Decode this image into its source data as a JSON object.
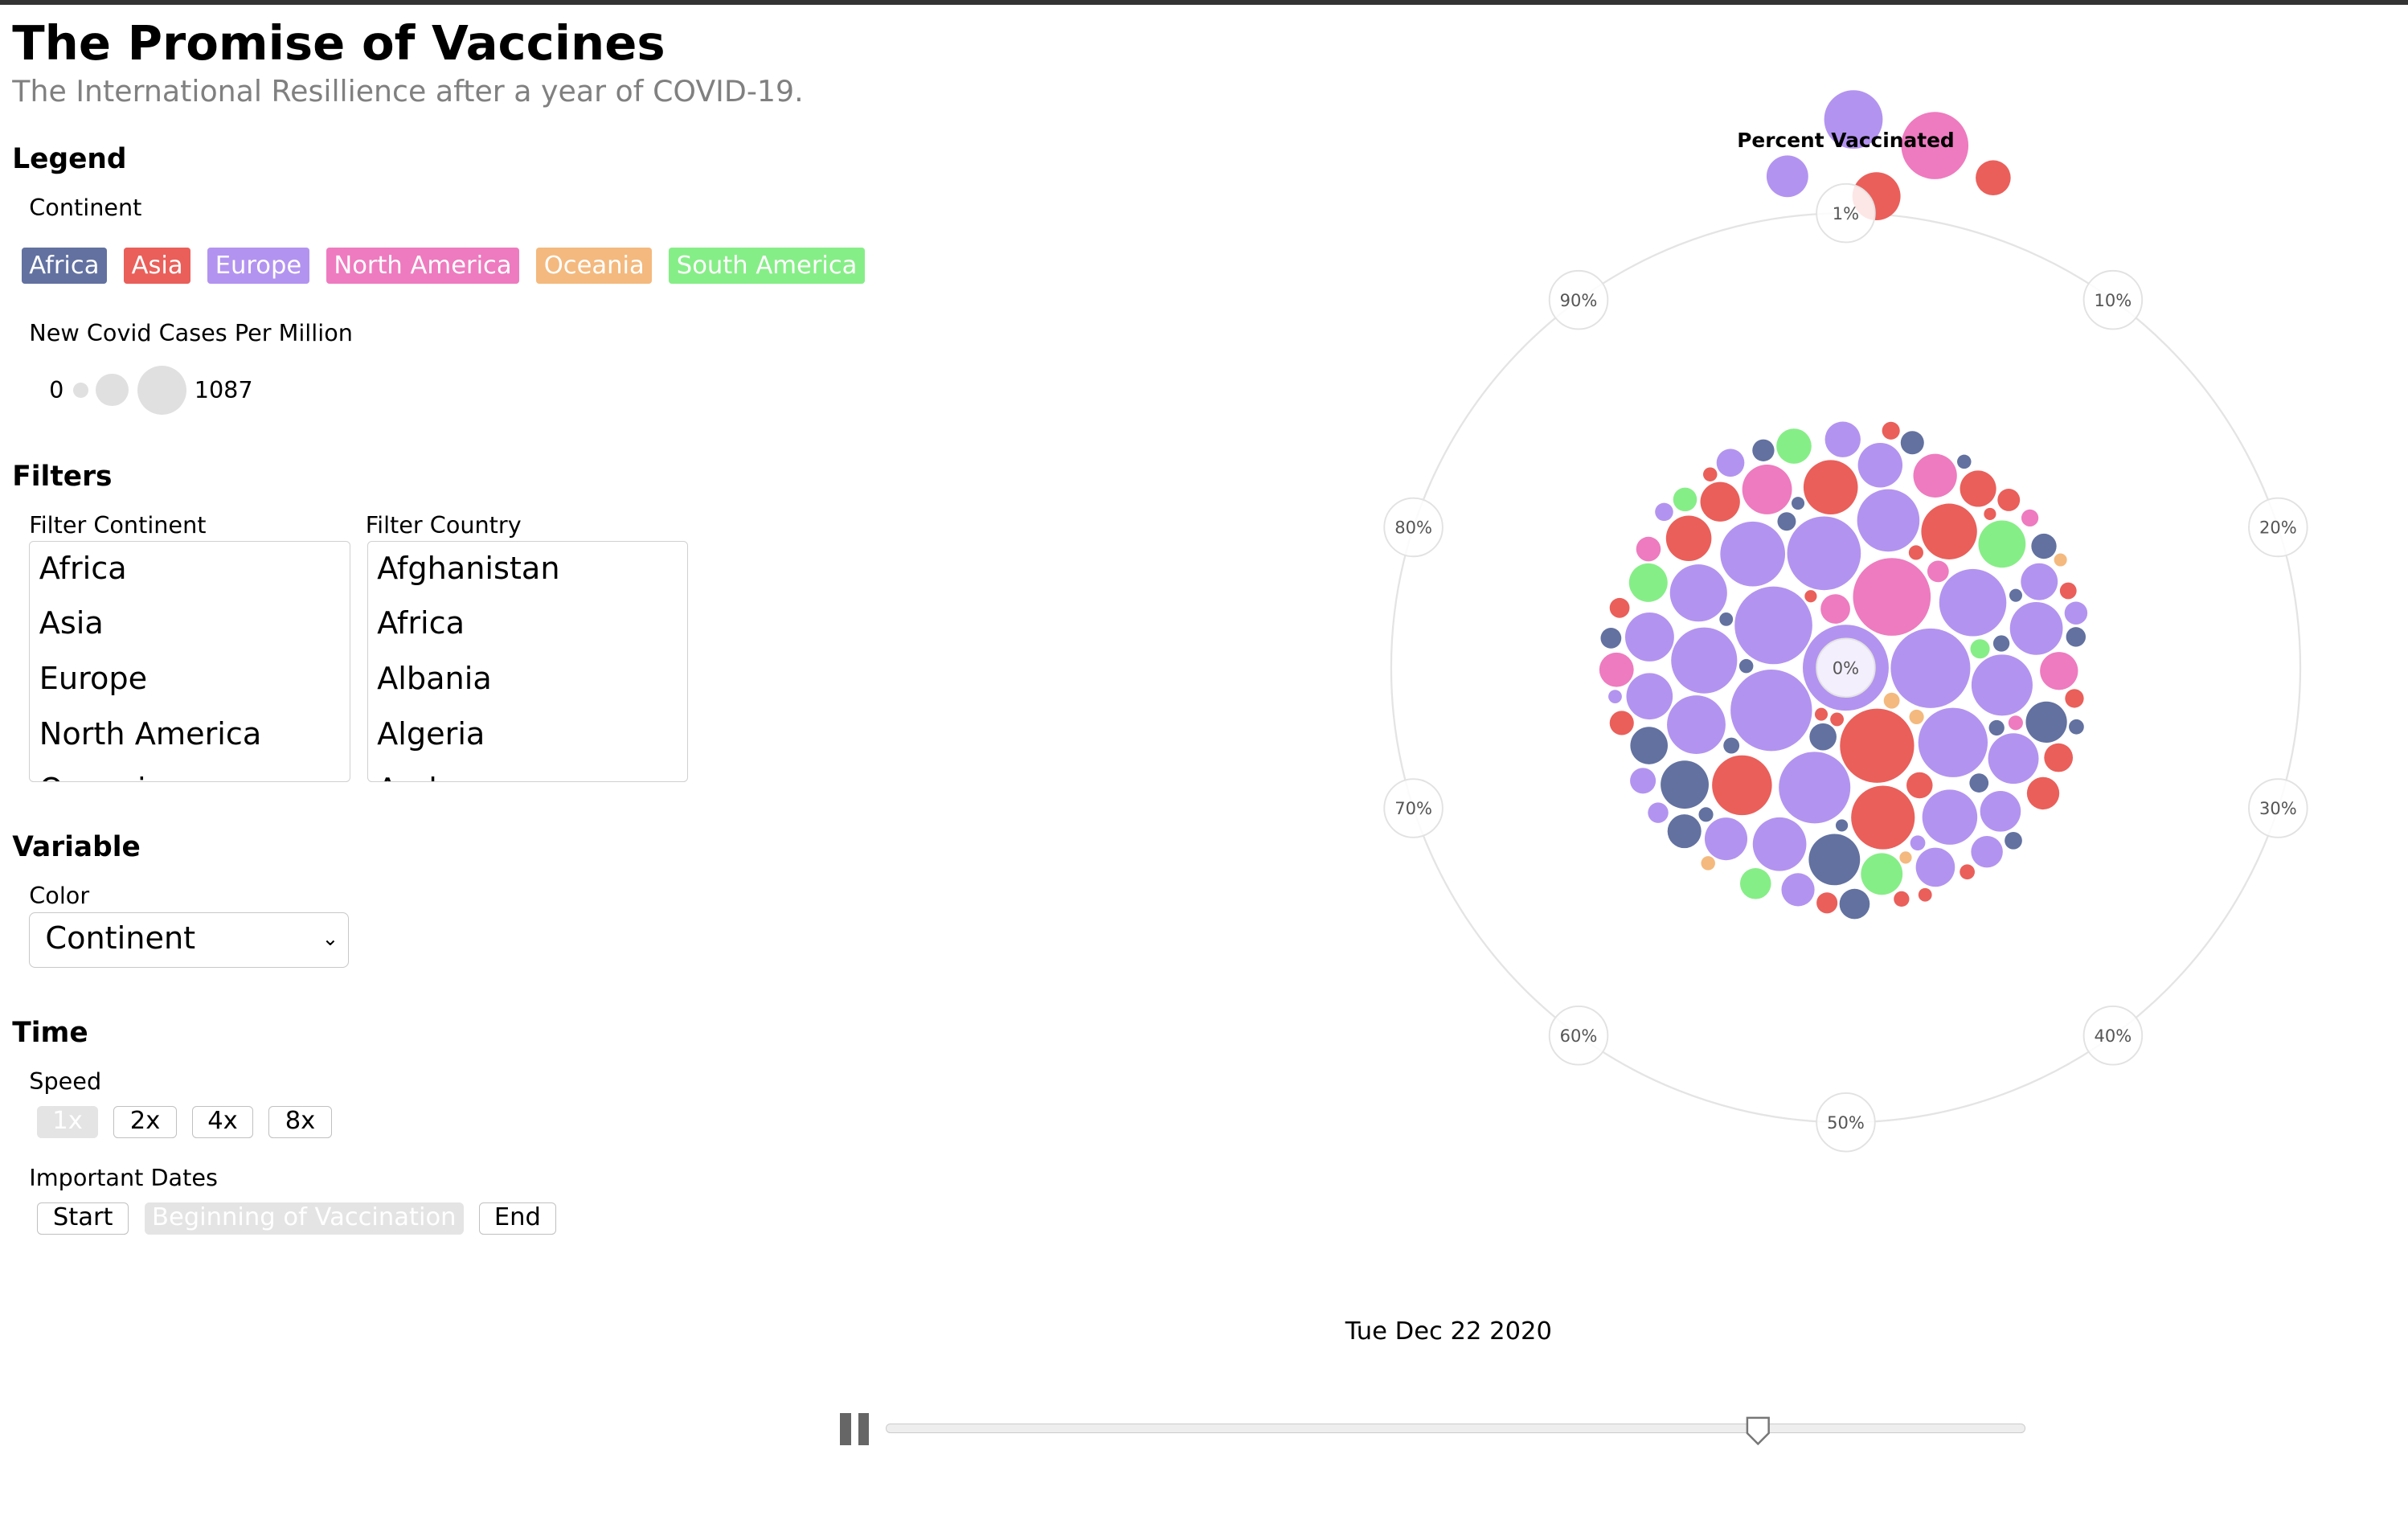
{
  "header": {
    "title": "The Promise of Vaccines",
    "subtitle": "The International Resillience after a year of COVID-19."
  },
  "legend": {
    "heading": "Legend",
    "continent_label": "Continent",
    "continents": [
      {
        "name": "Africa",
        "color": "#6271a0"
      },
      {
        "name": "Asia",
        "color": "#ea5f5a"
      },
      {
        "name": "Europe",
        "color": "#b393f0"
      },
      {
        "name": "North America",
        "color": "#ee7bbf"
      },
      {
        "name": "Oceania",
        "color": "#f4b97e"
      },
      {
        "name": "South America",
        "color": "#86ee87"
      }
    ],
    "size_label": "New Covid Cases Per Million",
    "size_min": "0",
    "size_max": "1087"
  },
  "filters": {
    "heading": "Filters",
    "continent_label": "Filter Continent",
    "continent_options": [
      "Africa",
      "Asia",
      "Europe",
      "North America",
      "Oceania"
    ],
    "country_label": "Filter Country",
    "country_options": [
      "Afghanistan",
      "Africa",
      "Albania",
      "Algeria",
      "Andorra"
    ]
  },
  "variable": {
    "heading": "Variable",
    "color_label": "Color",
    "color_selected": "Continent"
  },
  "time": {
    "heading": "Time",
    "speed_label": "Speed",
    "speeds": [
      "1x",
      "2x",
      "4x",
      "8x"
    ],
    "dates_label": "Important Dates",
    "date_buttons": [
      "Start",
      "Beginning of Vaccination",
      "End"
    ]
  },
  "player": {
    "current_date": "Tue Dec 22 2020",
    "progress": 0.765
  },
  "chart_data": {
    "type": "scatter",
    "title": "Percent Vaccinated",
    "radial_ticks": [
      "0%",
      "1%",
      "10%",
      "20%",
      "30%",
      "40%",
      "50%",
      "60%",
      "70%",
      "80%",
      "90%"
    ],
    "size_legend": {
      "min": 0,
      "max": 1087
    },
    "outlier_bubbles": [
      {
        "continent": "Europe",
        "size": 380
      },
      {
        "continent": "North America",
        "size": 520
      },
      {
        "continent": "Asia",
        "size": 240
      },
      {
        "continent": "Europe",
        "size": 170
      },
      {
        "continent": "Asia",
        "size": 110
      }
    ],
    "cluster_bubbles": [
      {
        "continent": "Europe",
        "size": 900
      },
      {
        "continent": "Europe",
        "size": 800
      },
      {
        "continent": "Europe",
        "size": 760
      },
      {
        "continent": "Europe",
        "size": 720
      },
      {
        "continent": "North America",
        "size": 720
      },
      {
        "continent": "Asia",
        "size": 650
      },
      {
        "continent": "Europe",
        "size": 640
      },
      {
        "continent": "Europe",
        "size": 600
      },
      {
        "continent": "Europe",
        "size": 560
      },
      {
        "continent": "Europe",
        "size": 520
      },
      {
        "continent": "Europe",
        "size": 500
      },
      {
        "continent": "Europe",
        "size": 480
      },
      {
        "continent": "Asia",
        "size": 460
      },
      {
        "continent": "Europe",
        "size": 440
      },
      {
        "continent": "Europe",
        "size": 420
      },
      {
        "continent": "Asia",
        "size": 400
      },
      {
        "continent": "Europe",
        "size": 380
      },
      {
        "continent": "Europe",
        "size": 360
      },
      {
        "continent": "Asia",
        "size": 340
      },
      {
        "continent": "Europe",
        "size": 330
      },
      {
        "continent": "Asia",
        "size": 320
      },
      {
        "continent": "Europe",
        "size": 310
      },
      {
        "continent": "Europe",
        "size": 300
      },
      {
        "continent": "Africa",
        "size": 280
      },
      {
        "continent": "Europe",
        "size": 270
      },
      {
        "continent": "North America",
        "size": 260
      },
      {
        "continent": "Europe",
        "size": 250
      },
      {
        "continent": "Africa",
        "size": 240
      },
      {
        "continent": "South America",
        "size": 230
      },
      {
        "continent": "Europe",
        "size": 220
      },
      {
        "continent": "Asia",
        "size": 210
      },
      {
        "continent": "Europe",
        "size": 200
      },
      {
        "continent": "North America",
        "size": 190
      },
      {
        "continent": "Europe",
        "size": 180
      },
      {
        "continent": "South America",
        "size": 170
      },
      {
        "continent": "Africa",
        "size": 165
      },
      {
        "continent": "Europe",
        "size": 160
      },
      {
        "continent": "Asia",
        "size": 150
      },
      {
        "continent": "Europe",
        "size": 145
      },
      {
        "continent": "South America",
        "size": 140
      },
      {
        "continent": "North America",
        "size": 135
      },
      {
        "continent": "Africa",
        "size": 130
      },
      {
        "continent": "Europe",
        "size": 125
      },
      {
        "continent": "Asia",
        "size": 120
      },
      {
        "continent": "Europe",
        "size": 115
      },
      {
        "continent": "South America",
        "size": 110
      },
      {
        "continent": "North America",
        "size": 105
      },
      {
        "continent": "Africa",
        "size": 100
      },
      {
        "continent": "Europe",
        "size": 95
      },
      {
        "continent": "Asia",
        "size": 90
      },
      {
        "continent": "Europe",
        "size": 85
      },
      {
        "continent": "South America",
        "size": 80
      },
      {
        "continent": "Africa",
        "size": 75
      },
      {
        "continent": "North America",
        "size": 70
      },
      {
        "continent": "Asia",
        "size": 65
      },
      {
        "continent": "Europe",
        "size": 60
      },
      {
        "continent": "Africa",
        "size": 55
      },
      {
        "continent": "Asia",
        "size": 50
      },
      {
        "continent": "Europe",
        "size": 48
      },
      {
        "continent": "Africa",
        "size": 45
      },
      {
        "continent": "North America",
        "size": 42
      },
      {
        "continent": "Asia",
        "size": 40
      },
      {
        "continent": "South America",
        "size": 38
      },
      {
        "continent": "Africa",
        "size": 36
      },
      {
        "continent": "Europe",
        "size": 34
      },
      {
        "continent": "Asia",
        "size": 32
      },
      {
        "continent": "Africa",
        "size": 30
      },
      {
        "continent": "North America",
        "size": 28
      },
      {
        "continent": "Asia",
        "size": 26
      },
      {
        "continent": "Africa",
        "size": 25
      },
      {
        "continent": "Europe",
        "size": 24
      },
      {
        "continent": "Asia",
        "size": 22
      },
      {
        "continent": "Africa",
        "size": 21
      },
      {
        "continent": "South America",
        "size": 20
      },
      {
        "continent": "Africa",
        "size": 19
      },
      {
        "continent": "Asia",
        "size": 18
      },
      {
        "continent": "Africa",
        "size": 17
      },
      {
        "continent": "Europe",
        "size": 16
      },
      {
        "continent": "Asia",
        "size": 15
      },
      {
        "continent": "Africa",
        "size": 14
      },
      {
        "continent": "North America",
        "size": 13
      },
      {
        "continent": "Asia",
        "size": 12
      },
      {
        "continent": "Africa",
        "size": 11
      },
      {
        "continent": "Oceania",
        "size": 10
      },
      {
        "continent": "Africa",
        "size": 10
      },
      {
        "continent": "Asia",
        "size": 9
      },
      {
        "continent": "Africa",
        "size": 9
      },
      {
        "continent": "Europe",
        "size": 8
      },
      {
        "continent": "Asia",
        "size": 8
      },
      {
        "continent": "Africa",
        "size": 8
      },
      {
        "continent": "Oceania",
        "size": 7
      },
      {
        "continent": "Asia",
        "size": 7
      },
      {
        "continent": "Africa",
        "size": 7
      },
      {
        "continent": "North America",
        "size": 7
      },
      {
        "continent": "Africa",
        "size": 6
      },
      {
        "continent": "Asia",
        "size": 6
      },
      {
        "continent": "Oceania",
        "size": 6
      },
      {
        "continent": "Africa",
        "size": 6
      },
      {
        "continent": "Asia",
        "size": 5
      },
      {
        "continent": "Africa",
        "size": 5
      },
      {
        "continent": "Europe",
        "size": 5
      },
      {
        "continent": "Asia",
        "size": 5
      },
      {
        "continent": "Oceania",
        "size": 4
      },
      {
        "continent": "Africa",
        "size": 4
      },
      {
        "continent": "Asia",
        "size": 4
      },
      {
        "continent": "Africa",
        "size": 4
      },
      {
        "continent": "Oceania",
        "size": 3
      },
      {
        "continent": "Asia",
        "size": 3
      },
      {
        "continent": "Africa",
        "size": 3
      },
      {
        "continent": "Asia",
        "size": 3
      }
    ]
  }
}
